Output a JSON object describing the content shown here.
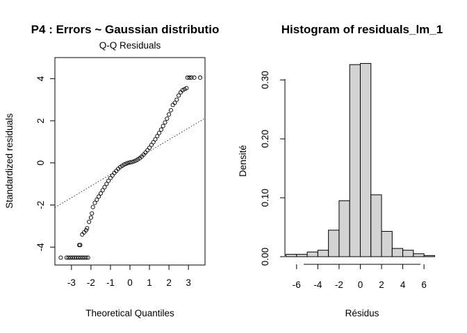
{
  "chart_data": [
    {
      "type": "scatter",
      "title": "P4 : Errors ~ Gaussian distributio",
      "subtitle": "Q-Q Residuals",
      "xlabel": "Theoretical Quantiles",
      "ylabel": "Standardized residuals",
      "xlim": [
        -3.85,
        3.85
      ],
      "ylim": [
        -4.85,
        5.0
      ],
      "xticks": [
        -3,
        -2,
        -1,
        0,
        1,
        2,
        3
      ],
      "yticks": [
        -4,
        -2,
        0,
        2,
        4
      ],
      "reference_line": {
        "intercept": 0.0,
        "slope": 0.55,
        "style": "dotted"
      },
      "series": [
        {
          "marker": "open-circle",
          "points": [
            [
              -3.55,
              -4.5
            ],
            [
              -3.25,
              -4.5
            ],
            [
              -3.15,
              -4.5
            ],
            [
              -3.05,
              -4.5
            ],
            [
              -2.95,
              -4.5
            ],
            [
              -2.85,
              -4.5
            ],
            [
              -2.75,
              -4.5
            ],
            [
              -2.65,
              -4.5
            ],
            [
              -2.55,
              -4.5
            ],
            [
              -2.45,
              -4.5
            ],
            [
              -2.35,
              -4.5
            ],
            [
              -2.25,
              -4.5
            ],
            [
              -2.15,
              -4.5
            ],
            [
              -2.6,
              -3.9
            ],
            [
              -2.55,
              -3.9
            ],
            [
              -2.45,
              -3.4
            ],
            [
              -2.35,
              -3.3
            ],
            [
              -2.25,
              -3.2
            ],
            [
              -2.2,
              -3.1
            ],
            [
              -2.1,
              -2.8
            ],
            [
              -2.0,
              -2.6
            ],
            [
              -1.95,
              -2.4
            ],
            [
              -1.9,
              -2.1
            ],
            [
              -1.8,
              -1.9
            ],
            [
              -1.7,
              -1.75
            ],
            [
              -1.6,
              -1.6
            ],
            [
              -1.5,
              -1.45
            ],
            [
              -1.4,
              -1.3
            ],
            [
              -1.3,
              -1.15
            ],
            [
              -1.2,
              -1.0
            ],
            [
              -1.1,
              -0.85
            ],
            [
              -1.0,
              -0.72
            ],
            [
              -0.9,
              -0.6
            ],
            [
              -0.8,
              -0.48
            ],
            [
              -0.7,
              -0.38
            ],
            [
              -0.6,
              -0.28
            ],
            [
              -0.5,
              -0.2
            ],
            [
              -0.4,
              -0.14
            ],
            [
              -0.3,
              -0.08
            ],
            [
              -0.2,
              -0.04
            ],
            [
              -0.1,
              0.0
            ],
            [
              0.0,
              0.02
            ],
            [
              0.1,
              0.04
            ],
            [
              0.2,
              0.07
            ],
            [
              0.3,
              0.11
            ],
            [
              0.4,
              0.16
            ],
            [
              0.5,
              0.22
            ],
            [
              0.6,
              0.3
            ],
            [
              0.7,
              0.39
            ],
            [
              0.8,
              0.49
            ],
            [
              0.9,
              0.6
            ],
            [
              1.0,
              0.72
            ],
            [
              1.1,
              0.85
            ],
            [
              1.2,
              0.98
            ],
            [
              1.3,
              1.12
            ],
            [
              1.4,
              1.27
            ],
            [
              1.5,
              1.42
            ],
            [
              1.6,
              1.58
            ],
            [
              1.7,
              1.75
            ],
            [
              1.8,
              1.92
            ],
            [
              1.9,
              2.1
            ],
            [
              2.0,
              2.3
            ],
            [
              2.1,
              2.5
            ],
            [
              2.2,
              2.75
            ],
            [
              2.3,
              2.85
            ],
            [
              2.4,
              3.0
            ],
            [
              2.5,
              3.2
            ],
            [
              2.6,
              3.35
            ],
            [
              2.7,
              3.45
            ],
            [
              2.8,
              3.5
            ],
            [
              2.9,
              3.55
            ],
            [
              2.95,
              4.05
            ],
            [
              3.05,
              4.05
            ],
            [
              3.15,
              4.05
            ],
            [
              3.3,
              4.05
            ],
            [
              3.6,
              4.05
            ]
          ]
        }
      ]
    },
    {
      "type": "bar",
      "title": "Histogram of residuals_lm_1",
      "xlabel": "Résidus",
      "ylabel": "Densité",
      "xlim": [
        -7.1,
        7.3
      ],
      "ylim": [
        0,
        0.345
      ],
      "xticks": [
        -6,
        -4,
        -2,
        0,
        2,
        4,
        6
      ],
      "yticks": [
        "0.00",
        "0.10",
        "0.20",
        "0.30"
      ],
      "bin_edges": [
        -7,
        -6,
        -5,
        -4,
        -3,
        -2,
        -1,
        0,
        1,
        2,
        3,
        4,
        5,
        6,
        7
      ],
      "values": [
        0.004,
        0.004,
        0.008,
        0.011,
        0.045,
        0.095,
        0.326,
        0.328,
        0.105,
        0.043,
        0.014,
        0.011,
        0.005,
        0.002
      ],
      "bar_fill": "#d3d3d3"
    }
  ]
}
